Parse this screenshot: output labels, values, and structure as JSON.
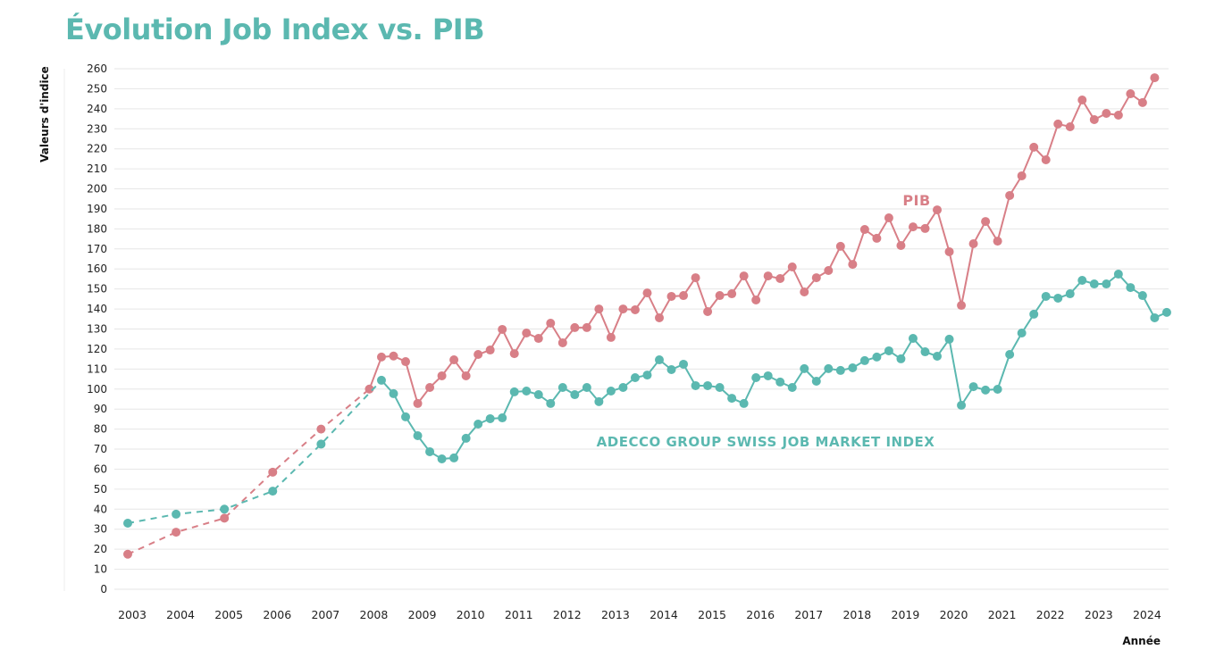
{
  "chart_data": {
    "type": "line",
    "title": "Évolution Job Index vs. PIB",
    "ylabel": "Valeurs d'indice",
    "xlabel": "Année",
    "ylim": [
      0,
      260
    ],
    "yticks": [
      0,
      10,
      20,
      30,
      40,
      50,
      60,
      70,
      80,
      90,
      100,
      110,
      120,
      130,
      140,
      150,
      160,
      170,
      180,
      190,
      200,
      210,
      220,
      230,
      240,
      250,
      260
    ],
    "xticks": [
      "2003",
      "2004",
      "2005",
      "2006",
      "2007",
      "2008",
      "2009",
      "2010",
      "2011",
      "2012",
      "2013",
      "2014",
      "2015",
      "2016",
      "2017",
      "2018",
      "2019",
      "2020",
      "2021",
      "2022",
      "2023",
      "2024"
    ],
    "grid": true,
    "series": [
      {
        "name": "PIB",
        "color": "#d87f87",
        "dashed_until": 2008,
        "points": [
          [
            2003,
            17.5
          ],
          [
            2004,
            28.5
          ],
          [
            2005,
            35.5
          ],
          [
            2006,
            58.5
          ],
          [
            2007,
            80
          ],
          [
            2008,
            100
          ],
          [
            2008.25,
            116
          ],
          [
            2008.5,
            116.5
          ],
          [
            2008.75,
            113.7
          ],
          [
            2009,
            92.8
          ],
          [
            2009.25,
            100.8
          ],
          [
            2009.5,
            106.6
          ],
          [
            2009.75,
            114.6
          ],
          [
            2010,
            106.6
          ],
          [
            2010.25,
            117.3
          ],
          [
            2010.5,
            119.5
          ],
          [
            2010.75,
            129.8
          ],
          [
            2011,
            117.7
          ],
          [
            2011.25,
            128
          ],
          [
            2011.5,
            125.3
          ],
          [
            2011.75,
            132.9
          ],
          [
            2012,
            123.1
          ],
          [
            2012.25,
            130.7
          ],
          [
            2012.5,
            130.7
          ],
          [
            2012.75,
            140
          ],
          [
            2013,
            125.8
          ],
          [
            2013.25,
            140
          ],
          [
            2013.5,
            139.6
          ],
          [
            2013.75,
            148
          ],
          [
            2014,
            135.6
          ],
          [
            2014.25,
            146.3
          ],
          [
            2014.5,
            146.7
          ],
          [
            2014.75,
            155.6
          ],
          [
            2015,
            138.7
          ],
          [
            2015.25,
            146.7
          ],
          [
            2015.5,
            147.6
          ],
          [
            2015.75,
            156.5
          ],
          [
            2016,
            144.5
          ],
          [
            2016.25,
            156.5
          ],
          [
            2016.5,
            155.2
          ],
          [
            2016.75,
            161
          ],
          [
            2017,
            148.5
          ],
          [
            2017.25,
            155.6
          ],
          [
            2017.5,
            159.2
          ],
          [
            2017.75,
            171.3
          ],
          [
            2018,
            162.3
          ],
          [
            2018.25,
            179.7
          ],
          [
            2018.5,
            175.3
          ],
          [
            2018.75,
            185.5
          ],
          [
            2019,
            171.7
          ],
          [
            2019.25,
            181
          ],
          [
            2019.5,
            180.2
          ],
          [
            2019.75,
            189.5
          ],
          [
            2020,
            168.6
          ],
          [
            2020.25,
            141.8
          ],
          [
            2020.5,
            172.6
          ],
          [
            2020.75,
            183.7
          ],
          [
            2021,
            173.9
          ],
          [
            2021.25,
            196.7
          ],
          [
            2021.5,
            206.5
          ],
          [
            2021.75,
            220.8
          ],
          [
            2022,
            214.5
          ],
          [
            2022.25,
            232.4
          ],
          [
            2022.5,
            231
          ],
          [
            2022.75,
            244.4
          ],
          [
            2023,
            234.6
          ],
          [
            2023.25,
            237.7
          ],
          [
            2023.5,
            236.8
          ],
          [
            2023.75,
            247.5
          ],
          [
            2024,
            243.1
          ],
          [
            2024.25,
            255.5
          ]
        ]
      },
      {
        "name": "ADECCO GROUP SWISS JOB MARKET INDEX",
        "color": "#5bb8b0",
        "dashed_until": 2008.25,
        "points": [
          [
            2003,
            33
          ],
          [
            2004,
            37.5
          ],
          [
            2005,
            40
          ],
          [
            2006,
            49
          ],
          [
            2007,
            72.5
          ],
          [
            2008.25,
            104.4
          ],
          [
            2008.5,
            97.7
          ],
          [
            2008.75,
            86.1
          ],
          [
            2009,
            76.7
          ],
          [
            2009.25,
            68.7
          ],
          [
            2009.5,
            65.1
          ],
          [
            2009.75,
            65.6
          ],
          [
            2010,
            75.4
          ],
          [
            2010.25,
            82.5
          ],
          [
            2010.5,
            85.2
          ],
          [
            2010.75,
            85.6
          ],
          [
            2011,
            98.6
          ],
          [
            2011.25,
            99
          ],
          [
            2011.5,
            97.2
          ],
          [
            2011.75,
            92.8
          ],
          [
            2012,
            100.8
          ],
          [
            2012.25,
            97.2
          ],
          [
            2012.5,
            100.8
          ],
          [
            2012.75,
            93.7
          ],
          [
            2013,
            99
          ],
          [
            2013.25,
            100.8
          ],
          [
            2013.5,
            105.7
          ],
          [
            2013.75,
            107
          ],
          [
            2014,
            114.6
          ],
          [
            2014.25,
            109.7
          ],
          [
            2014.5,
            112.4
          ],
          [
            2014.75,
            101.7
          ],
          [
            2015,
            101.7
          ],
          [
            2015.25,
            100.8
          ],
          [
            2015.5,
            95.4
          ],
          [
            2015.75,
            92.8
          ],
          [
            2016,
            105.7
          ],
          [
            2016.25,
            106.6
          ],
          [
            2016.5,
            103.5
          ],
          [
            2016.75,
            100.8
          ],
          [
            2017,
            110.2
          ],
          [
            2017.25,
            103.9
          ],
          [
            2017.5,
            110.2
          ],
          [
            2017.75,
            109.3
          ],
          [
            2018,
            110.6
          ],
          [
            2018.25,
            114.2
          ],
          [
            2018.5,
            116
          ],
          [
            2018.75,
            119.1
          ],
          [
            2019,
            115.1
          ],
          [
            2019.25,
            125.3
          ],
          [
            2019.5,
            118.6
          ],
          [
            2019.75,
            116.4
          ],
          [
            2020,
            124.9
          ],
          [
            2020.25,
            91.9
          ],
          [
            2020.5,
            101.2
          ],
          [
            2020.75,
            99.5
          ],
          [
            2021,
            99.9
          ],
          [
            2021.25,
            117.3
          ],
          [
            2021.5,
            128
          ],
          [
            2021.75,
            137.4
          ],
          [
            2022,
            146.3
          ],
          [
            2022.25,
            145.4
          ],
          [
            2022.5,
            147.6
          ],
          [
            2022.75,
            154.3
          ],
          [
            2023,
            152.5
          ],
          [
            2023.25,
            152.5
          ],
          [
            2023.5,
            157.4
          ],
          [
            2023.75,
            150.7
          ],
          [
            2024,
            146.7
          ],
          [
            2024.25,
            135.6
          ],
          [
            2024.5,
            138.3
          ]
        ]
      }
    ]
  }
}
